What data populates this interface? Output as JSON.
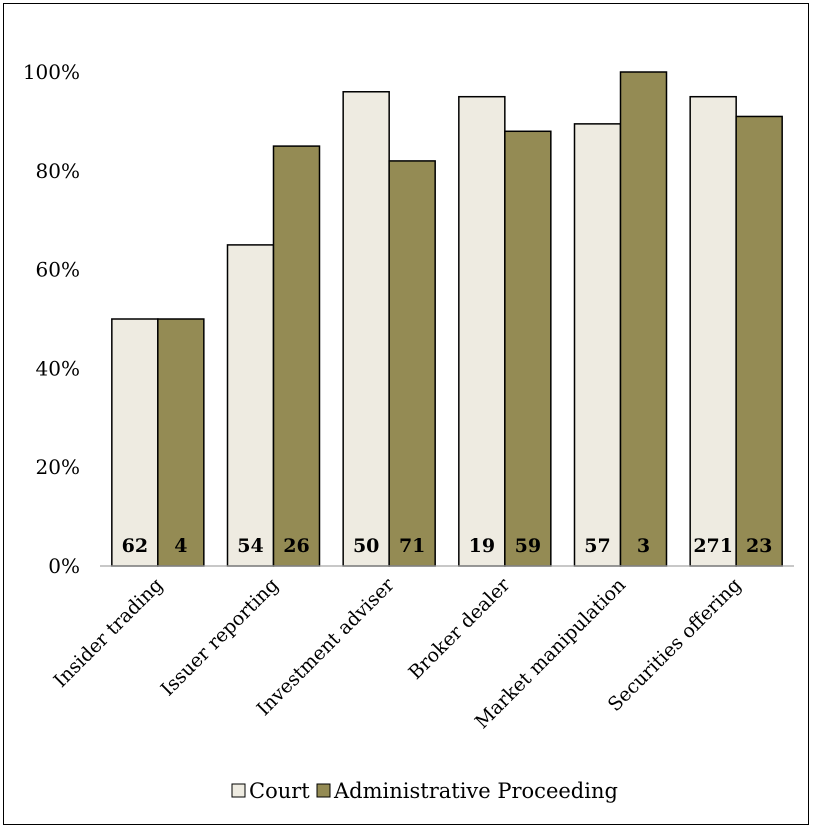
{
  "chart_data": {
    "type": "bar",
    "title": "",
    "xlabel": "",
    "ylabel": "",
    "categories": [
      "Insider trading",
      "Issuer reporting",
      "Investment adviser",
      "Broker dealer",
      "Market manipulation",
      "Securities offering"
    ],
    "series": [
      {
        "name": "Court",
        "color": "#eeebe1",
        "values": [
          50,
          65,
          96,
          95,
          89.5,
          95
        ],
        "labels": [
          "62",
          "54",
          "50",
          "19",
          "57",
          "271"
        ]
      },
      {
        "name": "Administrative Proceeding",
        "color": "#948b54",
        "values": [
          50,
          85,
          82,
          88,
          100,
          91
        ],
        "labels": [
          "4",
          "26",
          "71",
          "59",
          "3",
          "23"
        ]
      }
    ],
    "ylim": [
      0,
      100
    ],
    "yticks": [
      "0%",
      "20%",
      "40%",
      "60%",
      "80%",
      "100%"
    ],
    "ytick_values": [
      0,
      20,
      40,
      60,
      80,
      100
    ],
    "grid": false,
    "legend_position": "bottom"
  }
}
